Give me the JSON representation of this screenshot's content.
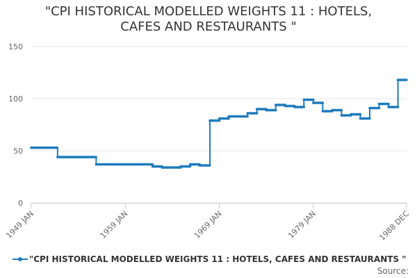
{
  "chart_data": {
    "type": "line",
    "title_lines": [
      "\"CPI HISTORICAL MODELLED WEIGHTS 11 : HOTELS,",
      "CAFES AND RESTAURANTS \""
    ],
    "x_start": 1949.0,
    "x_end": 1988.92,
    "xlabel": "",
    "ylabel": "",
    "ylim": [
      0,
      150
    ],
    "y_ticks": [
      0,
      50,
      100,
      150
    ],
    "x_ticks": [
      {
        "label": "1949 JAN",
        "x": 1949.0
      },
      {
        "label": "1959 JAN",
        "x": 1959.0
      },
      {
        "label": "1969 JAN",
        "x": 1969.0
      },
      {
        "label": "1979 JAN",
        "x": 1979.0
      },
      {
        "label": "1988 DEC",
        "x": 1988.92
      }
    ],
    "grid": true,
    "legend_position": "bottom-left",
    "series": [
      {
        "name": "\"CPI HISTORICAL MODELLED WEIGHTS 11 : HOTELS, CAFES AND RESTAURANTS \"",
        "color": "#1f7bbd",
        "steps": [
          {
            "from": 1949.0,
            "to": 1951.8,
            "value": 53
          },
          {
            "from": 1951.8,
            "to": 1955.9,
            "value": 44
          },
          {
            "from": 1955.9,
            "to": 1961.9,
            "value": 37
          },
          {
            "from": 1961.9,
            "to": 1962.9,
            "value": 35
          },
          {
            "from": 1962.9,
            "to": 1964.9,
            "value": 34
          },
          {
            "from": 1964.9,
            "to": 1965.9,
            "value": 35
          },
          {
            "from": 1965.9,
            "to": 1966.9,
            "value": 37
          },
          {
            "from": 1966.9,
            "to": 1968.0,
            "value": 36
          },
          {
            "from": 1968.0,
            "to": 1969.0,
            "value": 79
          },
          {
            "from": 1969.0,
            "to": 1970.0,
            "value": 81
          },
          {
            "from": 1970.0,
            "to": 1972.0,
            "value": 83
          },
          {
            "from": 1972.0,
            "to": 1973.0,
            "value": 86
          },
          {
            "from": 1973.0,
            "to": 1974.0,
            "value": 90
          },
          {
            "from": 1974.0,
            "to": 1975.0,
            "value": 89
          },
          {
            "from": 1975.0,
            "to": 1976.0,
            "value": 94
          },
          {
            "from": 1976.0,
            "to": 1977.0,
            "value": 93
          },
          {
            "from": 1977.0,
            "to": 1978.0,
            "value": 92
          },
          {
            "from": 1978.0,
            "to": 1979.0,
            "value": 99
          },
          {
            "from": 1979.0,
            "to": 1980.0,
            "value": 96
          },
          {
            "from": 1980.0,
            "to": 1981.0,
            "value": 88
          },
          {
            "from": 1981.0,
            "to": 1982.0,
            "value": 89
          },
          {
            "from": 1982.0,
            "to": 1983.0,
            "value": 84
          },
          {
            "from": 1983.0,
            "to": 1984.0,
            "value": 85
          },
          {
            "from": 1984.0,
            "to": 1985.0,
            "value": 81
          },
          {
            "from": 1985.0,
            "to": 1986.0,
            "value": 91
          },
          {
            "from": 1986.0,
            "to": 1987.0,
            "value": 95
          },
          {
            "from": 1987.0,
            "to": 1988.0,
            "value": 92
          },
          {
            "from": 1988.0,
            "to": 1988.92,
            "value": 118
          }
        ]
      }
    ]
  },
  "legend_label": "\"CPI HISTORICAL MODELLED WEIGHTS 11 : HOTELS, CAFES AND RESTAURANTS \"",
  "source_label": "Source:"
}
